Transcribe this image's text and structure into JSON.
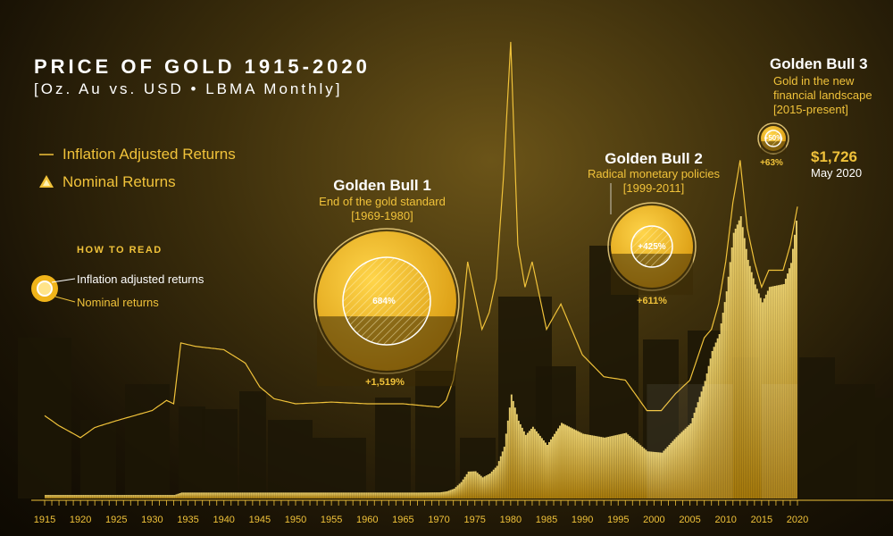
{
  "header": {
    "title": "PRICE OF GOLD 1915-2020",
    "subtitle": "[Oz. Au vs. USD • LBMA Monthly]"
  },
  "legend": {
    "inflation": "Inflation Adjusted Returns",
    "nominal": "Nominal Returns"
  },
  "how_to_read": {
    "heading": "HOW TO READ",
    "inflation_label": "Inflation adjusted returns",
    "nominal_label": "Nominal returns"
  },
  "bulls": [
    {
      "title": "Golden Bull 1",
      "subtitle": "End of the gold standard [1969-1980]",
      "inflation_adjusted": "684%",
      "nominal": "+1,519%"
    },
    {
      "title": "Golden Bull 2",
      "subtitle": "Radical monetary policies [1999-2011]",
      "inflation_adjusted": "+425%",
      "nominal": "+611%"
    },
    {
      "title": "Golden Bull 3",
      "subtitle": "Gold in the new financial landscape [2015-present]",
      "inflation_adjusted": "+50%",
      "nominal": "+63%"
    }
  ],
  "current": {
    "price": "$1,726",
    "date": "May 2020"
  },
  "colors": {
    "gold": "#f0c23a",
    "gold_light": "#ffe07a",
    "background": "#1a1305",
    "text": "#ffffff"
  },
  "chart_data": {
    "type": "area",
    "title": "PRICE OF GOLD 1915-2020",
    "x_ticks": [
      "1915",
      "1920",
      "1925",
      "1930",
      "1935",
      "1940",
      "1945",
      "1950",
      "1955",
      "1960",
      "1965",
      "1970",
      "1975",
      "1980",
      "1985",
      "1990",
      "1995",
      "2000",
      "2005",
      "2010",
      "2015",
      "2020"
    ],
    "xlim": [
      1915,
      2020
    ],
    "series": [
      {
        "name": "Inflation Adjusted Returns",
        "style": "line",
        "x": [
          1915,
          1917,
          1920,
          1922,
          1925,
          1930,
          1932,
          1933,
          1934,
          1936,
          1940,
          1943,
          1945,
          1947,
          1950,
          1955,
          1960,
          1965,
          1970,
          1971,
          1972,
          1973,
          1974,
          1975,
          1976,
          1977,
          1978,
          1979,
          1980,
          1981,
          1982,
          1983,
          1985,
          1987,
          1990,
          1993,
          1996,
          1999,
          2001,
          2003,
          2005,
          2007,
          2008,
          2009,
          2010,
          2011,
          2012,
          2013,
          2014,
          2015,
          2016,
          2018,
          2019,
          2020
        ],
        "y": [
          490,
          430,
          360,
          420,
          460,
          520,
          580,
          560,
          920,
          900,
          880,
          800,
          660,
          590,
          560,
          570,
          560,
          560,
          540,
          580,
          700,
          980,
          1400,
          1200,
          1000,
          1100,
          1300,
          1900,
          2700,
          1500,
          1250,
          1400,
          1000,
          1150,
          850,
          720,
          700,
          520,
          520,
          620,
          700,
          950,
          1000,
          1150,
          1400,
          1750,
          2000,
          1600,
          1400,
          1250,
          1350,
          1350,
          1500,
          1726
        ]
      },
      {
        "name": "Nominal Returns",
        "style": "area",
        "x": [
          1915,
          1933,
          1934,
          1967,
          1970,
          1971,
          1972,
          1973,
          1974,
          1975,
          1976,
          1977,
          1978,
          1979,
          1980,
          1981,
          1982,
          1983,
          1985,
          1987,
          1990,
          1993,
          1996,
          1999,
          2001,
          2003,
          2005,
          2007,
          2008,
          2009,
          2010,
          2011,
          2012,
          2013,
          2014,
          2015,
          2016,
          2018,
          2019,
          2020
        ],
        "y": [
          20.67,
          20.67,
          35,
          35,
          36,
          42,
          58,
          97,
          159,
          161,
          125,
          148,
          193,
          306,
          615,
          460,
          376,
          424,
          317,
          447,
          383,
          360,
          388,
          279,
          271,
          363,
          444,
          695,
          872,
          972,
          1225,
          1571,
          1669,
          1411,
          1266,
          1160,
          1251,
          1268,
          1393,
          1726
        ]
      }
    ]
  }
}
